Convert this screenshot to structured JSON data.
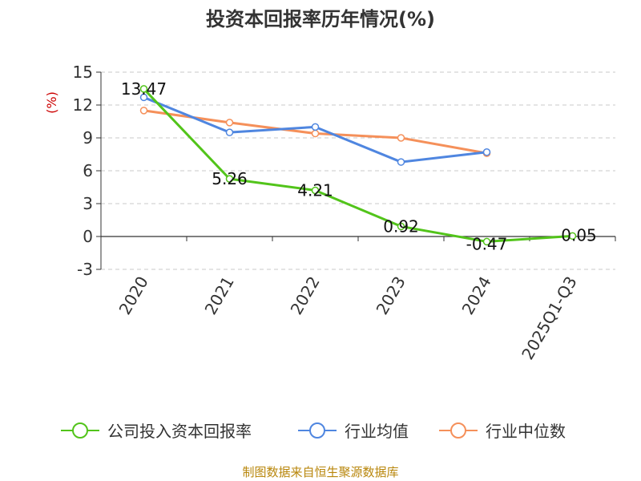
{
  "chart_data": {
    "type": "line",
    "title": "投资本回报率历年情况(%)",
    "ylabel": "(%)",
    "xlabel": "",
    "categories": [
      "2020",
      "2021",
      "2022",
      "2023",
      "2024",
      "2025Q1-Q3"
    ],
    "yticks": [
      15,
      12,
      9,
      6,
      3,
      0,
      -3
    ],
    "ylim": [
      -3,
      15
    ],
    "grid": true,
    "legend_position": "bottom",
    "series": [
      {
        "name": "公司投入资本回报率",
        "color": "#52c41a",
        "values": [
          13.47,
          5.26,
          4.21,
          0.92,
          -0.47,
          0.05
        ],
        "labels": [
          "13.47",
          "5.26",
          "4.21",
          "0.92",
          "-0.47",
          "0.05"
        ]
      },
      {
        "name": "行业均值",
        "color": "#4f86e0",
        "values": [
          12.7,
          9.5,
          10.0,
          6.8,
          7.7,
          null
        ]
      },
      {
        "name": "行业中位数",
        "color": "#f5905a",
        "values": [
          11.5,
          10.4,
          9.4,
          9.0,
          7.6,
          null
        ]
      }
    ]
  },
  "source": "制图数据来自恒生聚源数据库"
}
